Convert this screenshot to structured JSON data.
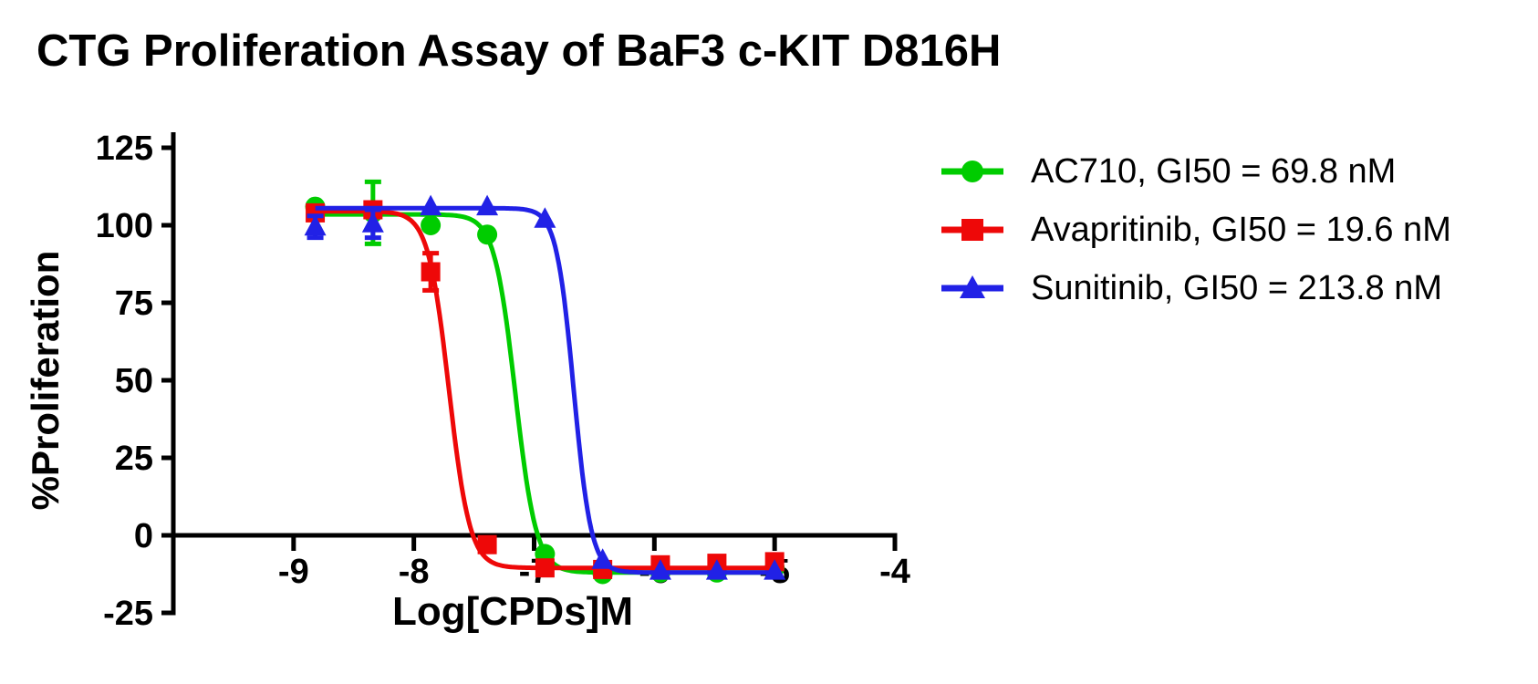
{
  "chart_data": {
    "type": "scatter",
    "title": "CTG Proliferation Assay of BaF3 c-KIT D816H",
    "xlabel": "Log[CPDs]M",
    "ylabel": "%Proliferation",
    "xlim": [
      -10,
      -4
    ],
    "ylim": [
      -25,
      125
    ],
    "xticks": [
      -9,
      -8,
      -7,
      -6,
      -5,
      -4
    ],
    "yticks": [
      125,
      100,
      75,
      50,
      25,
      0,
      -25
    ],
    "grid": false,
    "legend_position": "right-top",
    "axis_color": "#000000",
    "series": [
      {
        "name": "AC710",
        "gi50": "69.8 nM",
        "legend_label": "AC710, GI50 = 69.8 nM",
        "color": "#00CC00",
        "marker": "circle",
        "x": [
          -8.82,
          -8.34,
          -7.86,
          -7.39,
          -6.91,
          -6.43,
          -5.95,
          -5.48,
          -5.0
        ],
        "y": [
          106,
          104,
          100,
          97,
          -6,
          -12.5,
          -12,
          -12,
          -10.5
        ],
        "yerr": [
          0,
          10,
          0,
          0,
          0,
          0,
          0,
          0,
          0
        ],
        "fit": {
          "top": 103.5,
          "bottom": -12,
          "log_ic50": -7.156,
          "hill": 5
        }
      },
      {
        "name": "Avapritinib",
        "gi50": "19.6 nM",
        "legend_label": "Avapritinib, GI50 = 19.6 nM",
        "color": "#EE0808",
        "marker": "square",
        "x": [
          -8.82,
          -8.34,
          -7.86,
          -7.39,
          -6.91,
          -6.43,
          -5.95,
          -5.48,
          -5.0
        ],
        "y": [
          104,
          105,
          85,
          -3,
          -10.5,
          -11,
          -9.5,
          -9,
          -8.5
        ],
        "yerr": [
          0,
          0,
          6,
          0,
          0,
          0,
          0,
          0,
          0
        ],
        "fit": {
          "top": 104.5,
          "bottom": -10.5,
          "log_ic50": -7.708,
          "hill": 5
        }
      },
      {
        "name": "Sunitinib",
        "gi50": "213.8 nM",
        "legend_label": "Sunitinib, GI50 = 213.8 nM",
        "color": "#2121E6",
        "marker": "triangle",
        "x": [
          -8.82,
          -8.34,
          -7.86,
          -7.39,
          -6.91,
          -6.43,
          -5.95,
          -5.48,
          -5.0
        ],
        "y": [
          99.5,
          100.5,
          106,
          106,
          102,
          -8,
          -11.5,
          -11.5,
          -11.5
        ],
        "yerr": [
          3.5,
          4.5,
          0,
          0,
          0,
          0,
          0,
          0,
          0
        ],
        "fit": {
          "top": 105.5,
          "bottom": -12,
          "log_ic50": -6.67,
          "hill": 6
        }
      }
    ]
  }
}
